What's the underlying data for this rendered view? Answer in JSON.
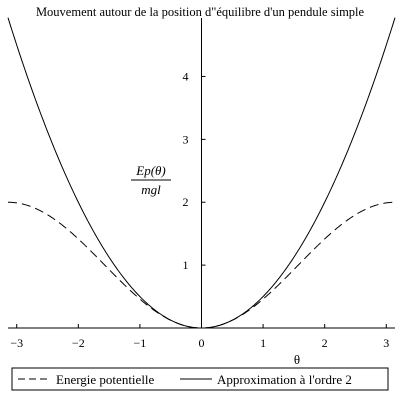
{
  "chart_data": {
    "type": "line",
    "title": "Mouvement autour de la position d\"équilibre d'un pendule simple",
    "xlabel": "θ",
    "ylabel": {
      "numerator": "Ep(θ)",
      "denominator": "mgl"
    },
    "xlim": [
      -3.14159,
      3.14159
    ],
    "ylim": [
      0,
      4.93
    ],
    "x_ticks": [
      -3,
      -2,
      -1,
      0,
      1,
      2,
      3
    ],
    "y_ticks": [
      1,
      2,
      3,
      4
    ],
    "grid": false,
    "legend_position": "bottom",
    "series": [
      {
        "name": "Energie potentielle",
        "formula": "1 - cos(θ)",
        "style": "dashed",
        "x": [
          -3.14159,
          -2.5,
          -2.0,
          -1.5,
          -1.0,
          -0.5,
          0,
          0.5,
          1.0,
          1.5,
          2.0,
          2.5,
          3.14159
        ],
        "y": [
          2.0,
          1.8,
          1.42,
          0.93,
          0.46,
          0.12,
          0,
          0.12,
          0.46,
          0.93,
          1.42,
          1.8,
          2.0
        ]
      },
      {
        "name": "Approximation à l'ordre 2",
        "formula": "θ²/2",
        "style": "solid",
        "x": [
          -3.14159,
          -2.5,
          -2.0,
          -1.5,
          -1.0,
          -0.5,
          0,
          0.5,
          1.0,
          1.5,
          2.0,
          2.5,
          3.14159
        ],
        "y": [
          4.93,
          3.13,
          2.0,
          1.13,
          0.5,
          0.13,
          0,
          0.13,
          0.5,
          1.13,
          2.0,
          3.13,
          4.93
        ]
      }
    ]
  }
}
